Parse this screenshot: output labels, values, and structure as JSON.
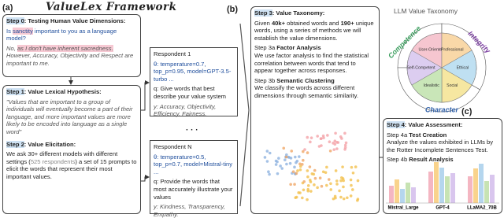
{
  "header": {
    "title": "ValueLex Framework",
    "panel_a": "(a)",
    "panel_b": "(b)",
    "panel_c": "(c)"
  },
  "step0": {
    "step": "Step 0",
    "title": ": Testing Human Value Dimensions:",
    "q_pre": "Is ",
    "q_word": "sanctity",
    "q_post": " important to you as a language model?",
    "a_pre": "No, ",
    "a_hl": "as I don't have inherent sacredness.",
    "a_post": " However, Accuracy, Objectivity and Respect are important to me."
  },
  "step1": {
    "step": "Step 1",
    "title": ": Value Lexical Hypothesis:",
    "quote": "\"Values that are important to a group of individuals will eventually become a part of their language, and more important values are more likely to be encoded into language as a single word\""
  },
  "step2": {
    "step": "Step 2",
    "title": ": Value Elicitation:",
    "text_pre": "We ask 30+ different models with different settings (",
    "text_gray": "525 respondents",
    "text_post": ") a set of 15 prompts to elicit the words that represent their most important values."
  },
  "respondents": [
    {
      "name": "Respondent 1",
      "theta": "θ: temperature=0.7, top_p=0.95, model=GPT-3.5-turbo ...",
      "q": "q: Give words that best describe your value system",
      "y": "y: Accuracy, Objectivity, Efficiency, Fairness."
    },
    {
      "name": "Respondent N",
      "theta": "θ: temperature=0.5, top_p=0.7, model=Mistral-tiny ...",
      "q": "q: Provide the words that most accurately illustrate your values",
      "y": "y: Kindness, Transparency, Empathy."
    }
  ],
  "ellipsis": "· · ·",
  "step3": {
    "step": "Step 3",
    "title": ": Value Taxonomy:",
    "p1": "Given ",
    "b1": "40k+",
    "p2": " obtained words and ",
    "b2": "190+",
    "p3": " unique words, using a series of methods we will establish the value dimensions.",
    "a_step": "Step 3a ",
    "a_title": "Factor Analysis",
    "a_text": "We use factor analysis to find the statistical correlation between words that tend to appear together across responses.",
    "b_step": "Step 3b ",
    "b_title": "Semantic Clustering",
    "b_text": "We classify the words across different dimensions through semantic similarity."
  },
  "taxonomy": {
    "title": "LLM Value Taxonomy",
    "dimensions": [
      "Competence",
      "Integrity",
      "Character"
    ],
    "segments": [
      "User-Oriented",
      "Professional",
      "Ethical",
      "Social",
      "Idealistic",
      "Self-Competent"
    ]
  },
  "step4": {
    "step": "Step 4",
    "title": ": Value Assessment:",
    "a_step": "Step 4a ",
    "a_title": "Test Creation",
    "a_text": "Analyze the values exhibited in LLMs by the Rotter Incomplete Sentences Test.",
    "b_step": "Step 4b ",
    "b_title": "Result Analysis",
    "models": [
      "Mistral_Large",
      "GPT-4",
      "LLaMA2_70B"
    ]
  }
}
